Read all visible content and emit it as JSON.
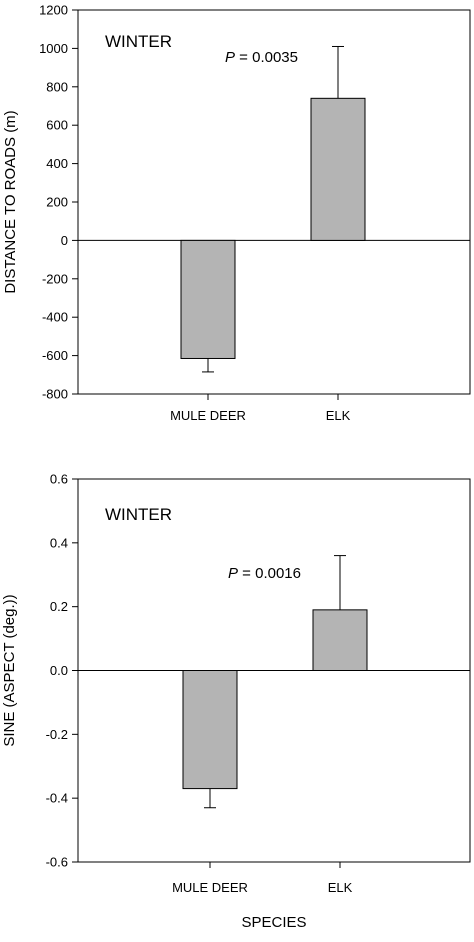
{
  "chart_data": [
    {
      "type": "bar",
      "panel_label": "WINTER",
      "annotation": {
        "p_symbol": "P",
        "p_text": " = 0.0035"
      },
      "categories": [
        "MULE DEER",
        "ELK"
      ],
      "values": [
        -615,
        740
      ],
      "error_upper": [
        -615,
        1010
      ],
      "error_lower": [
        -685,
        740
      ],
      "ylabel": "DISTANCE TO ROADS (m)",
      "xlabel": "",
      "ylim": [
        -800,
        1200
      ],
      "yticks": [
        1200,
        1000,
        800,
        600,
        400,
        200,
        0,
        -200,
        -400,
        -600,
        -800
      ],
      "ytick_labels": [
        "1200",
        "1000",
        "800",
        "600",
        "400",
        "200",
        "0",
        "-200",
        "-400",
        "-600",
        "-800"
      ],
      "zero_line": true,
      "bar_color": "#b4b4b4"
    },
    {
      "type": "bar",
      "panel_label": "WINTER",
      "annotation": {
        "p_symbol": "P",
        "p_text": " = 0.0016"
      },
      "categories": [
        "MULE DEER",
        "ELK"
      ],
      "values": [
        -0.37,
        0.19
      ],
      "error_upper": [
        -0.37,
        0.36
      ],
      "error_lower": [
        -0.43,
        0.19
      ],
      "ylabel": "SINE (ASPECT (deg.))",
      "xlabel": "SPECIES",
      "ylim": [
        -0.6,
        0.6
      ],
      "yticks": [
        0.6,
        0.4,
        0.2,
        0.0,
        -0.2,
        -0.4,
        -0.6
      ],
      "ytick_labels": [
        "0.6",
        "0.4",
        "0.2",
        "0.0",
        "-0.2",
        "-0.4",
        "-0.6"
      ],
      "zero_line": true,
      "bar_color": "#b4b4b4"
    }
  ]
}
